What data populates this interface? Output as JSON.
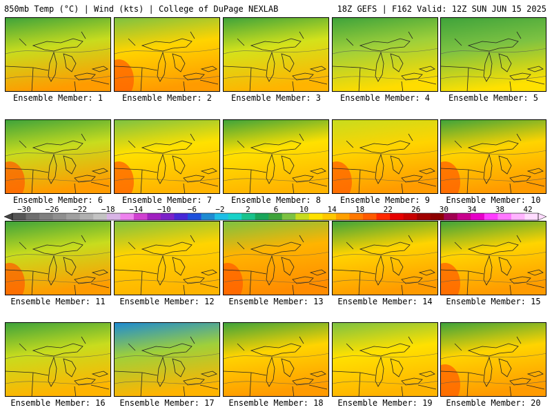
{
  "header": {
    "left": "850mb Temp (°C) | Wind (kts) | College of DuPage NEXLAB",
    "right": "18Z GEFS | F162 Valid: 12Z SUN JUN 15 2025"
  },
  "members": [
    {
      "label": "Ensemble Member: 1",
      "north": "#3fa33b",
      "south": "#ff9b00",
      "mid": "#c8dc1e",
      "west_warm": false
    },
    {
      "label": "Ensemble Member: 2",
      "north": "#7dc242",
      "south": "#ff9b00",
      "mid": "#ffd400",
      "west_warm": true
    },
    {
      "label": "Ensemble Member: 3",
      "north": "#3fa33b",
      "south": "#ffb400",
      "mid": "#d4e21b",
      "west_warm": false
    },
    {
      "label": "Ensemble Member: 4",
      "north": "#3fa33b",
      "south": "#ffdc00",
      "mid": "#9fd03a",
      "west_warm": false
    },
    {
      "label": "Ensemble Member: 5",
      "north": "#3fa33b",
      "south": "#ffe100",
      "mid": "#7dc242",
      "west_warm": false
    },
    {
      "label": "Ensemble Member: 6",
      "north": "#3fa33b",
      "south": "#ff9b00",
      "mid": "#c8dc1e",
      "west_warm": true
    },
    {
      "label": "Ensemble Member: 7",
      "north": "#7dc242",
      "south": "#ffb400",
      "mid": "#ffe100",
      "west_warm": true
    },
    {
      "label": "Ensemble Member: 8",
      "north": "#3fa33b",
      "south": "#ffb400",
      "mid": "#ffe100",
      "west_warm": false
    },
    {
      "label": "Ensemble Member: 9",
      "north": "#c8dc1e",
      "south": "#ff9b00",
      "mid": "#ffd400",
      "west_warm": true
    },
    {
      "label": "Ensemble Member: 10",
      "north": "#3fa33b",
      "south": "#ff9b00",
      "mid": "#ffd400",
      "west_warm": true
    },
    {
      "label": "Ensemble Member: 11",
      "north": "#3fa33b",
      "south": "#ff9b00",
      "mid": "#c8dc1e",
      "west_warm": true
    },
    {
      "label": "Ensemble Member: 12",
      "north": "#7dc242",
      "south": "#ffb400",
      "mid": "#ffd400",
      "west_warm": false
    },
    {
      "label": "Ensemble Member: 13",
      "north": "#7dc242",
      "south": "#ff8c00",
      "mid": "#ffb400",
      "west_warm": true
    },
    {
      "label": "Ensemble Member: 14",
      "north": "#3fa33b",
      "south": "#ff9b00",
      "mid": "#ffd400",
      "west_warm": false
    },
    {
      "label": "Ensemble Member: 15",
      "north": "#3fa33b",
      "south": "#ff9b00",
      "mid": "#ffd400",
      "west_warm": true
    },
    {
      "label": "Ensemble Member: 16",
      "north": "#3fa33b",
      "south": "#ffb400",
      "mid": "#c8dc1e",
      "west_warm": false
    },
    {
      "label": "Ensemble Member: 17",
      "north": "#1e8bd2",
      "south": "#ffb400",
      "mid": "#9fd03a",
      "west_warm": false
    },
    {
      "label": "Ensemble Member: 18",
      "north": "#3fa33b",
      "south": "#ff9b00",
      "mid": "#ffd400",
      "west_warm": false
    },
    {
      "label": "Ensemble Member: 19",
      "north": "#7dc242",
      "south": "#ffb400",
      "mid": "#ffe100",
      "west_warm": false
    },
    {
      "label": "Ensemble Member: 20",
      "north": "#3fa33b",
      "south": "#ff9b00",
      "mid": "#ffd400",
      "west_warm": true
    }
  ],
  "colorbar": {
    "tick_labels": [
      "−30",
      "−26",
      "−22",
      "−18",
      "−14",
      "−10",
      "−6",
      "−2",
      "2",
      "6",
      "10",
      "14",
      "18",
      "22",
      "26",
      "30",
      "34",
      "38",
      "42"
    ],
    "colors": [
      "#555555",
      "#6e6e6e",
      "#7f7f7f",
      "#8f8f8f",
      "#a0a0a0",
      "#b0b0b0",
      "#c3c3c3",
      "#d8b4e6",
      "#ee82ee",
      "#d040d0",
      "#a020c0",
      "#7b22c8",
      "#4628d6",
      "#1e50dc",
      "#1e8bd2",
      "#1ebee6",
      "#19d2c8",
      "#19c38c",
      "#19a55a",
      "#3fa33b",
      "#7dc242",
      "#c8dc1e",
      "#ffe100",
      "#ffc800",
      "#ffa000",
      "#ff7800",
      "#ff5a00",
      "#ff2800",
      "#e60000",
      "#c80000",
      "#a00000",
      "#8c0000",
      "#a00050",
      "#c8008c",
      "#e600c8",
      "#ff3cff",
      "#ff78ff",
      "#ffb4ff",
      "#ffdcff"
    ]
  }
}
